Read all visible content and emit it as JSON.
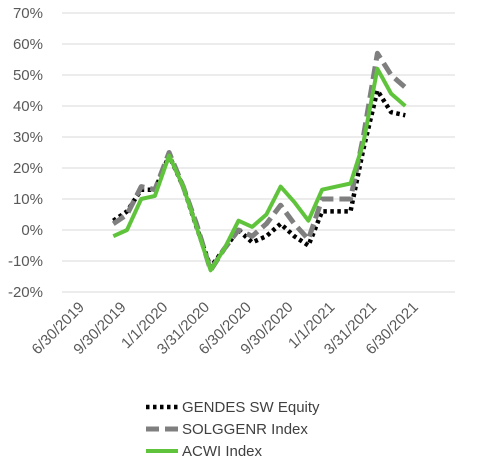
{
  "chart_data": {
    "type": "line",
    "title": "",
    "xlabel": "",
    "ylabel": "",
    "ylim": [
      -20,
      70
    ],
    "yticks": [
      -20,
      -10,
      0,
      10,
      20,
      30,
      40,
      50,
      60,
      70
    ],
    "ytick_labels": [
      "-20%",
      "-10%",
      "0%",
      "10%",
      "20%",
      "30%",
      "40%",
      "50%",
      "60%",
      "70%"
    ],
    "xlim": [
      "2019-06-30",
      "2021-06-30"
    ],
    "xtick_labels": [
      "6/30/2019",
      "9/30/2019",
      "1/1/2020",
      "3/31/2020",
      "6/30/2020",
      "9/30/2020",
      "1/1/2021",
      "3/31/2021",
      "6/30/2021"
    ],
    "grid": true,
    "legend_position": "bottom",
    "x": [
      "2019-08-31",
      "2019-09-30",
      "2019-10-31",
      "2019-11-30",
      "2019-12-31",
      "2020-01-31",
      "2020-02-29",
      "2020-03-31",
      "2020-04-30",
      "2020-05-31",
      "2020-06-30",
      "2020-07-31",
      "2020-08-31",
      "2020-09-30",
      "2020-10-31",
      "2020-11-30",
      "2020-12-31",
      "2021-01-31",
      "2021-02-28",
      "2021-03-31",
      "2021-04-30",
      "2021-05-31",
      "2021-06-30"
    ],
    "series": [
      {
        "name": "GENDES SW Equity",
        "color": "#000000",
        "style": "dotted",
        "values": [
          3,
          6,
          13,
          13,
          24,
          14,
          1,
          -12,
          -6,
          0,
          -4,
          -2,
          2,
          -2,
          -5,
          6,
          6,
          6,
          26,
          45,
          38,
          37,
          null
        ]
      },
      {
        "name": "SOLGGENR Index",
        "color": "#7f7f7f",
        "style": "dashed",
        "values": [
          2,
          5,
          14,
          13,
          25,
          14,
          2,
          -13,
          -6,
          0,
          -2,
          2,
          8,
          2,
          -3,
          10,
          10,
          10,
          30,
          57,
          50,
          46,
          null
        ]
      },
      {
        "name": "ACWI Index",
        "color": "#5fc43c",
        "style": "solid",
        "values": [
          -2,
          0,
          10,
          11,
          24,
          14,
          1,
          -13,
          -6,
          3,
          1,
          5,
          14,
          9,
          3,
          13,
          14,
          15,
          28,
          52,
          44,
          40,
          null
        ]
      }
    ]
  }
}
